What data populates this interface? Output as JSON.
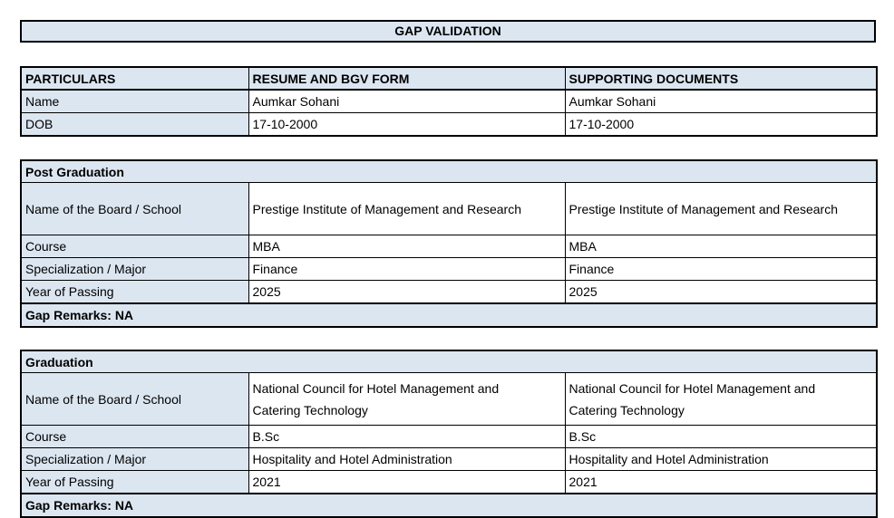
{
  "title": "GAP VALIDATION",
  "colors": {
    "accent_fill": "#dce6f1",
    "border": "#000000",
    "page_bg": "#ffffff"
  },
  "particulars_table": {
    "headers": [
      "PARTICULARS",
      "RESUME AND BGV FORM",
      "SUPPORTING DOCUMENTS"
    ],
    "rows": [
      {
        "label": "Name",
        "resume": "Aumkar Sohani",
        "supporting": "Aumkar Sohani"
      },
      {
        "label": "DOB",
        "resume": "17-10-2000",
        "supporting": "17-10-2000"
      }
    ]
  },
  "sections": [
    {
      "title": "Post Graduation",
      "rows": [
        {
          "label": "Name of the Board / School",
          "resume": "Prestige Institute of Management and Research",
          "supporting": "Prestige Institute of Management and Research"
        },
        {
          "label": "Course",
          "resume": "MBA",
          "supporting": "MBA"
        },
        {
          "label": "Specialization / Major",
          "resume": "Finance",
          "supporting": "Finance"
        },
        {
          "label": "Year of Passing",
          "resume": "2025",
          "supporting": "2025"
        }
      ],
      "gap_remarks": "Gap Remarks: NA"
    },
    {
      "title": "Graduation",
      "rows": [
        {
          "label": "Name of the Board / School",
          "resume": "National Council for Hotel Management and Catering Technology",
          "supporting": "National Council for Hotel Management and Catering Technology"
        },
        {
          "label": "Course",
          "resume": "B.Sc",
          "supporting": "B.Sc"
        },
        {
          "label": "Specialization / Major",
          "resume": "Hospitality and Hotel Administration",
          "supporting": "Hospitality and Hotel Administration"
        },
        {
          "label": "Year of Passing",
          "resume": "2021",
          "supporting": "2021"
        }
      ],
      "gap_remarks": "Gap Remarks: NA"
    }
  ]
}
